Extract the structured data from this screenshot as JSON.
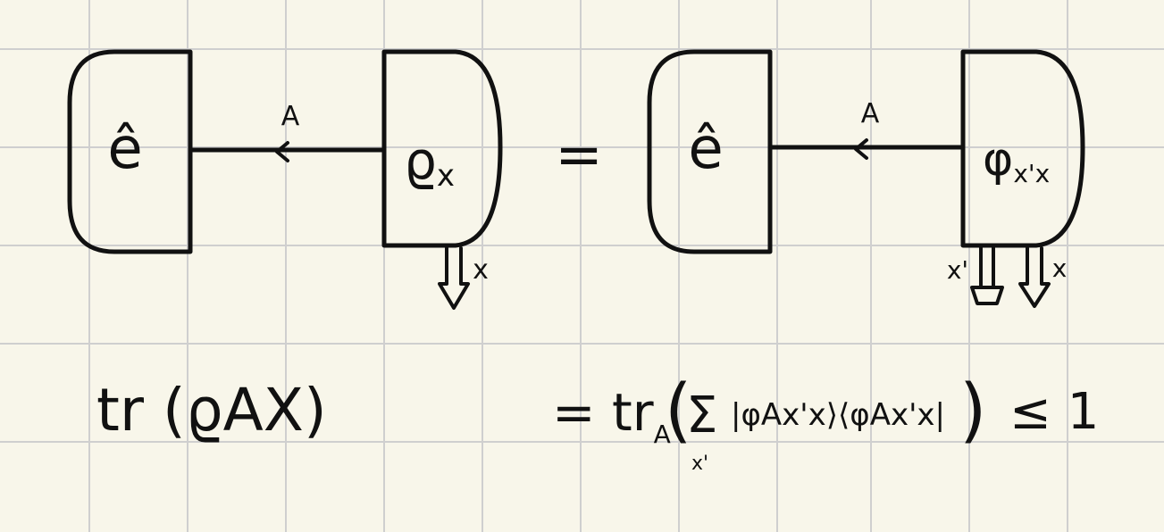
{
  "diagram": {
    "left": {
      "effect_label": "ê",
      "wire_label": "A",
      "state_label_base": "ϱ",
      "state_label_sub": "x",
      "output_label": "x"
    },
    "equals": "=",
    "right": {
      "effect_label": "ê",
      "wire_label": "A",
      "state_label_base": "φ",
      "state_label_sub": "x'x",
      "output_label_1": "x'",
      "output_label_2": "x"
    }
  },
  "equation": {
    "lhs": "tr (ϱAX)",
    "rhs_prefix": "= tr",
    "rhs_prefix_sub": "A",
    "rhs_sum_sub": "x'",
    "rhs_body": "|φAx'x⟩⟨φAx'x|",
    "rhs_suffix": "≤ 1"
  }
}
